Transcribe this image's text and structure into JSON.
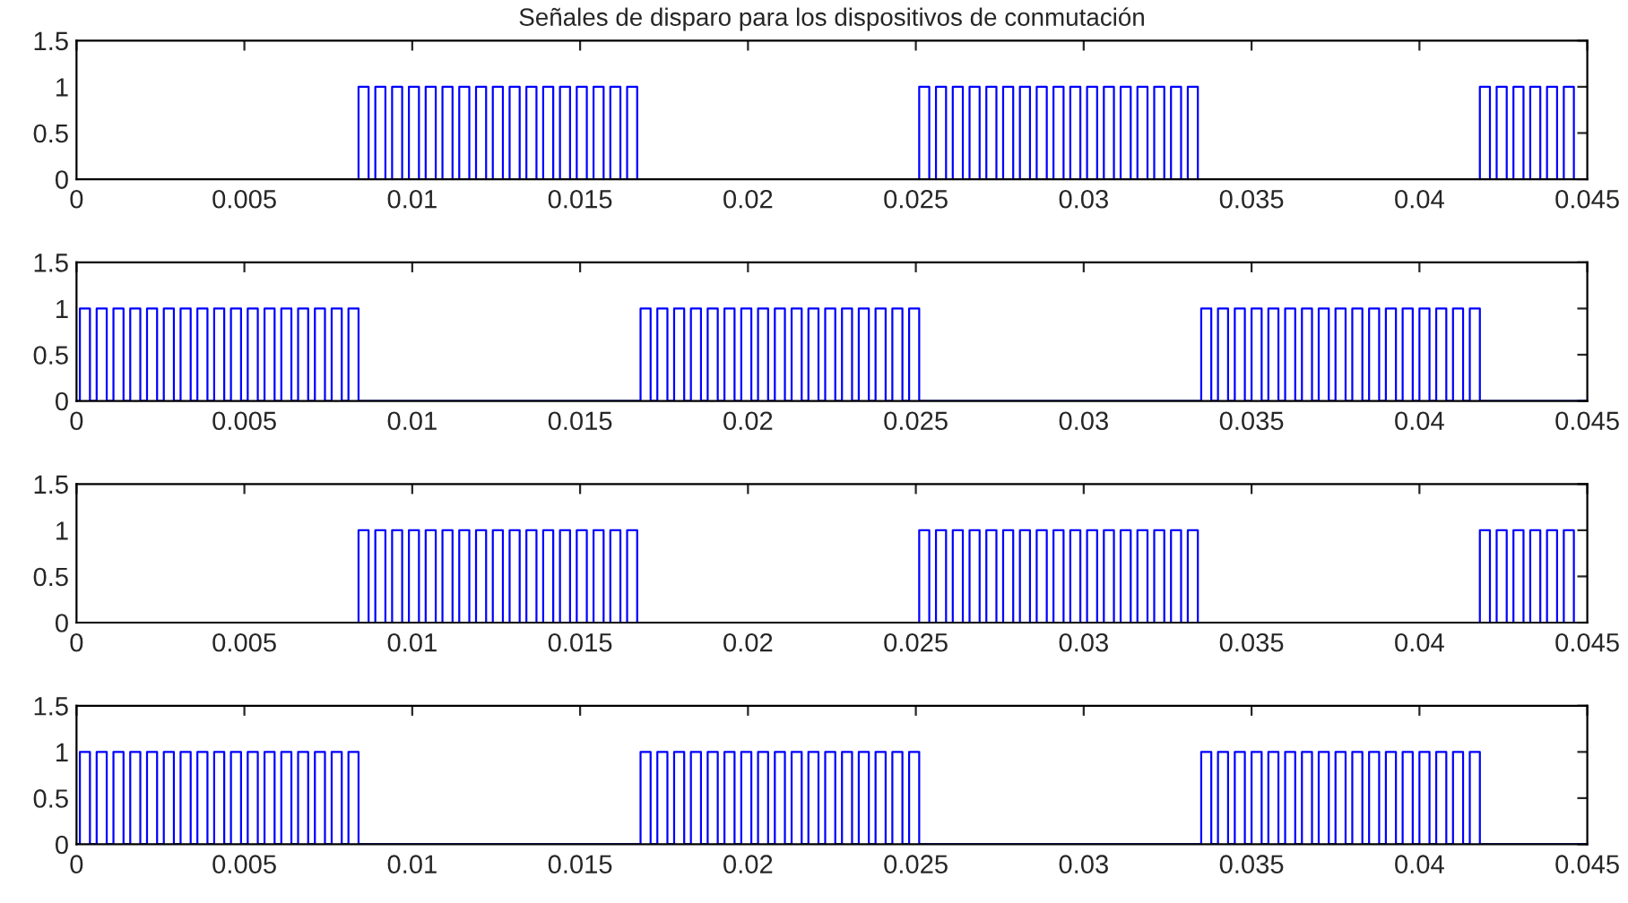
{
  "chart_data": [
    {
      "type": "step",
      "title": "Señales de disparo para los dispositivos de conmutación",
      "xlim": [
        0,
        0.045
      ],
      "ylim": [
        0,
        1.5
      ],
      "xticks": [
        0,
        0.005,
        0.01,
        0.015,
        0.02,
        0.025,
        0.03,
        0.035,
        0.04,
        0.045
      ],
      "yticks": [
        0,
        0.5,
        1,
        1.5
      ],
      "grid": false,
      "legend": false,
      "series": [
        {
          "color": "#0000ff",
          "x": [
            0,
            0.0084,
            0.0087,
            0.0089,
            0.0092,
            0.0094,
            0.0097,
            0.0099,
            0.0102,
            0.0104,
            0.0107,
            0.0109,
            0.0112,
            0.0114,
            0.0117,
            0.0119,
            0.0122,
            0.0124,
            0.0127,
            0.0129,
            0.0132,
            0.0134,
            0.0137,
            0.0139,
            0.0142,
            0.0144,
            0.0147,
            0.0149,
            0.0152,
            0.0154,
            0.0157,
            0.0159,
            0.0162,
            0.0164,
            0.0167,
            0.0251,
            0.0254,
            0.0256,
            0.0259,
            0.0261,
            0.0264,
            0.0266,
            0.0269,
            0.0271,
            0.0274,
            0.0276,
            0.0279,
            0.0281,
            0.0284,
            0.0286,
            0.0289,
            0.0291,
            0.0294,
            0.0296,
            0.0299,
            0.0301,
            0.0304,
            0.0306,
            0.0309,
            0.0311,
            0.0314,
            0.0316,
            0.0319,
            0.0321,
            0.0324,
            0.0326,
            0.0329,
            0.0331,
            0.0334,
            0.0418,
            0.0421,
            0.0423,
            0.0426,
            0.0428,
            0.0431,
            0.0433,
            0.0436,
            0.0438,
            0.0441,
            0.0443,
            0.0446,
            0.045
          ],
          "values": [
            0,
            1,
            0,
            1,
            0,
            1,
            0,
            1,
            0,
            1,
            0,
            1,
            0,
            1,
            0,
            1,
            0,
            1,
            0,
            1,
            0,
            1,
            0,
            1,
            0,
            1,
            0,
            1,
            0,
            1,
            0,
            1,
            0,
            1,
            0,
            1,
            0,
            1,
            0,
            1,
            0,
            1,
            0,
            1,
            0,
            1,
            0,
            1,
            0,
            1,
            0,
            1,
            0,
            1,
            0,
            1,
            0,
            1,
            0,
            1,
            0,
            1,
            0,
            1,
            0,
            1,
            0,
            1,
            0,
            1,
            0,
            1,
            0,
            1,
            0,
            1,
            0,
            1,
            0,
            1,
            0,
            0
          ]
        }
      ]
    },
    {
      "type": "step",
      "xlim": [
        0,
        0.045
      ],
      "ylim": [
        0,
        1.5
      ],
      "xticks": [
        0,
        0.005,
        0.01,
        0.015,
        0.02,
        0.025,
        0.03,
        0.035,
        0.04,
        0.045
      ],
      "yticks": [
        0,
        0.5,
        1,
        1.5
      ],
      "grid": false,
      "legend": false,
      "series": [
        {
          "color": "#0000ff",
          "x": [
            0,
            0.0001,
            0.0004,
            0.0006,
            0.0009,
            0.0011,
            0.0014,
            0.0016,
            0.0019,
            0.0021,
            0.0024,
            0.0026,
            0.0029,
            0.0031,
            0.0034,
            0.0036,
            0.0039,
            0.0041,
            0.0044,
            0.0046,
            0.0049,
            0.0051,
            0.0054,
            0.0056,
            0.0059,
            0.0061,
            0.0064,
            0.0066,
            0.0069,
            0.0071,
            0.0074,
            0.0076,
            0.0079,
            0.0081,
            0.0084,
            0.0168,
            0.0171,
            0.0173,
            0.0176,
            0.0178,
            0.0181,
            0.0183,
            0.0186,
            0.0188,
            0.0191,
            0.0193,
            0.0196,
            0.0198,
            0.0201,
            0.0203,
            0.0206,
            0.0208,
            0.0211,
            0.0213,
            0.0216,
            0.0218,
            0.0221,
            0.0223,
            0.0226,
            0.0228,
            0.0231,
            0.0233,
            0.0236,
            0.0238,
            0.0241,
            0.0243,
            0.0246,
            0.0248,
            0.0251,
            0.0335,
            0.0338,
            0.034,
            0.0343,
            0.0345,
            0.0348,
            0.035,
            0.0353,
            0.0355,
            0.0358,
            0.036,
            0.0363,
            0.0365,
            0.0368,
            0.037,
            0.0373,
            0.0375,
            0.0378,
            0.038,
            0.0383,
            0.0385,
            0.0388,
            0.039,
            0.0393,
            0.0395,
            0.0398,
            0.04,
            0.0403,
            0.0405,
            0.0408,
            0.041,
            0.0413,
            0.0415,
            0.0418,
            0.045
          ],
          "values": [
            0,
            1,
            0,
            1,
            0,
            1,
            0,
            1,
            0,
            1,
            0,
            1,
            0,
            1,
            0,
            1,
            0,
            1,
            0,
            1,
            0,
            1,
            0,
            1,
            0,
            1,
            0,
            1,
            0,
            1,
            0,
            1,
            0,
            1,
            0,
            1,
            0,
            1,
            0,
            1,
            0,
            1,
            0,
            1,
            0,
            1,
            0,
            1,
            0,
            1,
            0,
            1,
            0,
            1,
            0,
            1,
            0,
            1,
            0,
            1,
            0,
            1,
            0,
            1,
            0,
            1,
            0,
            1,
            0,
            1,
            0,
            1,
            0,
            1,
            0,
            1,
            0,
            1,
            0,
            1,
            0,
            1,
            0,
            1,
            0,
            1,
            0,
            1,
            0,
            1,
            0,
            1,
            0,
            1,
            0,
            1,
            0,
            1,
            0,
            1,
            0,
            1,
            0,
            0
          ]
        }
      ]
    },
    {
      "type": "step",
      "xlim": [
        0,
        0.045
      ],
      "ylim": [
        0,
        1.5
      ],
      "xticks": [
        0,
        0.005,
        0.01,
        0.015,
        0.02,
        0.025,
        0.03,
        0.035,
        0.04,
        0.045
      ],
      "yticks": [
        0,
        0.5,
        1,
        1.5
      ],
      "grid": false,
      "legend": false,
      "series": [
        {
          "color": "#0000ff",
          "x": [
            0,
            0.0084,
            0.0087,
            0.0089,
            0.0092,
            0.0094,
            0.0097,
            0.0099,
            0.0102,
            0.0104,
            0.0107,
            0.0109,
            0.0112,
            0.0114,
            0.0117,
            0.0119,
            0.0122,
            0.0124,
            0.0127,
            0.0129,
            0.0132,
            0.0134,
            0.0137,
            0.0139,
            0.0142,
            0.0144,
            0.0147,
            0.0149,
            0.0152,
            0.0154,
            0.0157,
            0.0159,
            0.0162,
            0.0164,
            0.0167,
            0.0251,
            0.0254,
            0.0256,
            0.0259,
            0.0261,
            0.0264,
            0.0266,
            0.0269,
            0.0271,
            0.0274,
            0.0276,
            0.0279,
            0.0281,
            0.0284,
            0.0286,
            0.0289,
            0.0291,
            0.0294,
            0.0296,
            0.0299,
            0.0301,
            0.0304,
            0.0306,
            0.0309,
            0.0311,
            0.0314,
            0.0316,
            0.0319,
            0.0321,
            0.0324,
            0.0326,
            0.0329,
            0.0331,
            0.0334,
            0.0418,
            0.0421,
            0.0423,
            0.0426,
            0.0428,
            0.0431,
            0.0433,
            0.0436,
            0.0438,
            0.0441,
            0.0443,
            0.0446,
            0.045
          ],
          "values": [
            0,
            1,
            0,
            1,
            0,
            1,
            0,
            1,
            0,
            1,
            0,
            1,
            0,
            1,
            0,
            1,
            0,
            1,
            0,
            1,
            0,
            1,
            0,
            1,
            0,
            1,
            0,
            1,
            0,
            1,
            0,
            1,
            0,
            1,
            0,
            1,
            0,
            1,
            0,
            1,
            0,
            1,
            0,
            1,
            0,
            1,
            0,
            1,
            0,
            1,
            0,
            1,
            0,
            1,
            0,
            1,
            0,
            1,
            0,
            1,
            0,
            1,
            0,
            1,
            0,
            1,
            0,
            1,
            0,
            1,
            0,
            1,
            0,
            1,
            0,
            1,
            0,
            1,
            0,
            1,
            0,
            0
          ]
        }
      ]
    },
    {
      "type": "step",
      "xlim": [
        0,
        0.045
      ],
      "ylim": [
        0,
        1.5
      ],
      "xticks": [
        0,
        0.005,
        0.01,
        0.015,
        0.02,
        0.025,
        0.03,
        0.035,
        0.04,
        0.045
      ],
      "yticks": [
        0,
        0.5,
        1,
        1.5
      ],
      "grid": false,
      "legend": false,
      "series": [
        {
          "color": "#0000ff",
          "x": [
            0,
            0.0001,
            0.0004,
            0.0006,
            0.0009,
            0.0011,
            0.0014,
            0.0016,
            0.0019,
            0.0021,
            0.0024,
            0.0026,
            0.0029,
            0.0031,
            0.0034,
            0.0036,
            0.0039,
            0.0041,
            0.0044,
            0.0046,
            0.0049,
            0.0051,
            0.0054,
            0.0056,
            0.0059,
            0.0061,
            0.0064,
            0.0066,
            0.0069,
            0.0071,
            0.0074,
            0.0076,
            0.0079,
            0.0081,
            0.0084,
            0.0168,
            0.0171,
            0.0173,
            0.0176,
            0.0178,
            0.0181,
            0.0183,
            0.0186,
            0.0188,
            0.0191,
            0.0193,
            0.0196,
            0.0198,
            0.0201,
            0.0203,
            0.0206,
            0.0208,
            0.0211,
            0.0213,
            0.0216,
            0.0218,
            0.0221,
            0.0223,
            0.0226,
            0.0228,
            0.0231,
            0.0233,
            0.0236,
            0.0238,
            0.0241,
            0.0243,
            0.0246,
            0.0248,
            0.0251,
            0.0335,
            0.0338,
            0.034,
            0.0343,
            0.0345,
            0.0348,
            0.035,
            0.0353,
            0.0355,
            0.0358,
            0.036,
            0.0363,
            0.0365,
            0.0368,
            0.037,
            0.0373,
            0.0375,
            0.0378,
            0.038,
            0.0383,
            0.0385,
            0.0388,
            0.039,
            0.0393,
            0.0395,
            0.0398,
            0.04,
            0.0403,
            0.0405,
            0.0408,
            0.041,
            0.0413,
            0.0415,
            0.0418,
            0.045
          ],
          "values": [
            0,
            1,
            0,
            1,
            0,
            1,
            0,
            1,
            0,
            1,
            0,
            1,
            0,
            1,
            0,
            1,
            0,
            1,
            0,
            1,
            0,
            1,
            0,
            1,
            0,
            1,
            0,
            1,
            0,
            1,
            0,
            1,
            0,
            1,
            0,
            1,
            0,
            1,
            0,
            1,
            0,
            1,
            0,
            1,
            0,
            1,
            0,
            1,
            0,
            1,
            0,
            1,
            0,
            1,
            0,
            1,
            0,
            1,
            0,
            1,
            0,
            1,
            0,
            1,
            0,
            1,
            0,
            1,
            0,
            1,
            0,
            1,
            0,
            1,
            0,
            1,
            0,
            1,
            0,
            1,
            0,
            1,
            0,
            1,
            0,
            1,
            0,
            1,
            0,
            1,
            0,
            1,
            0,
            1,
            0,
            1,
            0,
            1,
            0,
            1,
            0,
            1,
            0,
            0
          ]
        }
      ]
    }
  ]
}
